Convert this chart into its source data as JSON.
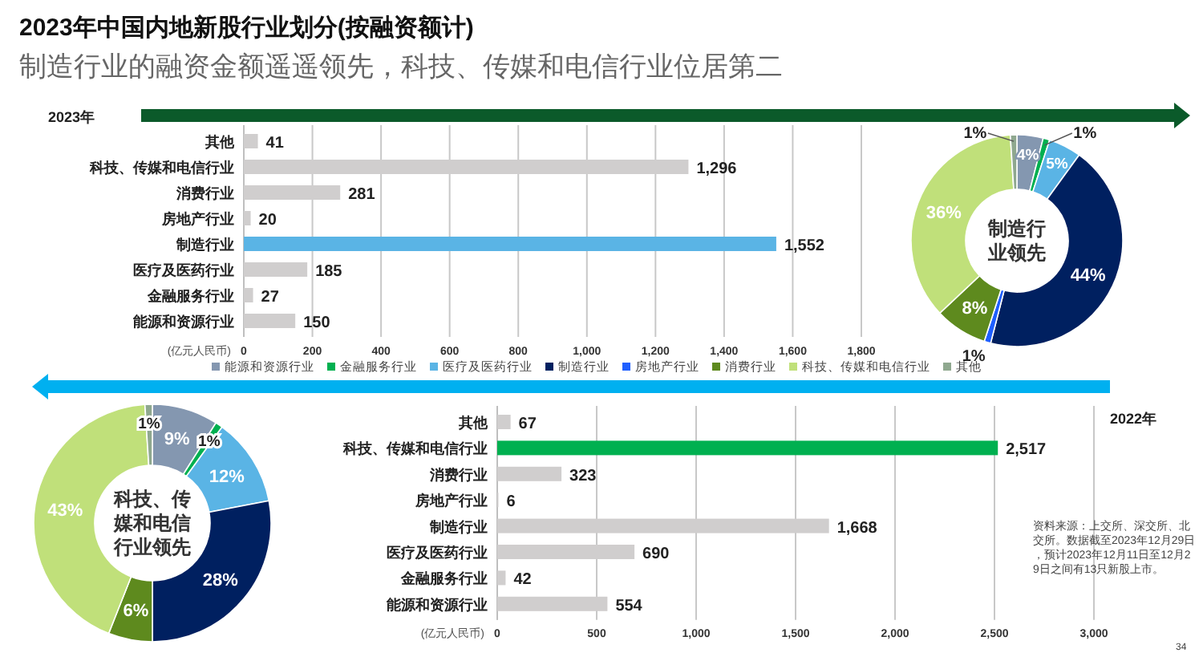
{
  "chart_data": [
    {
      "type": "bar",
      "orientation": "horizontal",
      "title": "2023年中国内地新股行业划分(按融资额计)",
      "subtitle": "制造行业的融资金额遥遥领先，科技、传媒和电信行业位居第二",
      "annotations": [
        "2023年"
      ],
      "xlabel": "(亿元人民币)",
      "categories": [
        "其他",
        "科技、传媒和电信行业",
        "消费行业",
        "房地产行业",
        "制造行业",
        "医疗及医药行业",
        "金融服务行业",
        "能源和资源行业"
      ],
      "values": [
        41,
        1296,
        281,
        20,
        1552,
        185,
        27,
        150
      ],
      "value_labels": [
        "41",
        "1,296",
        "281",
        "20",
        "1,552",
        "185",
        "27",
        "150"
      ],
      "colors": [
        "#d0cece",
        "#d0cece",
        "#d0cece",
        "#d0cece",
        "#5ab4e5",
        "#d0cece",
        "#d0cece",
        "#d0cece"
      ],
      "xlim": [
        0,
        1800
      ],
      "xticks": [
        0,
        200,
        400,
        600,
        800,
        {
          "value": 1000,
          "label": "1,000"
        },
        {
          "value": 1200,
          "label": "1,200"
        },
        {
          "value": 1400,
          "label": "1,400"
        },
        {
          "value": 1600,
          "label": "1,600"
        },
        {
          "value": 1800,
          "label": "1,800"
        }
      ],
      "grid": "x"
    },
    {
      "type": "donut",
      "annotations": [
        "制造行业领先"
      ],
      "legend": "bottom",
      "categories": [
        "能源和资源行业",
        "金融服务行业",
        "医疗及医药行业",
        "制造行业",
        "房地产行业",
        "消费行业",
        "科技、传媒和电信行业",
        "其他"
      ],
      "values": [
        4,
        1,
        5,
        44,
        1,
        8,
        36,
        1
      ],
      "value_labels": [
        "4%",
        "1%",
        "5%",
        "44%",
        "1%",
        "8%",
        "36%",
        "1%"
      ],
      "colors": [
        "#8497b0",
        "#00b050",
        "#5ab4e5",
        "#002060",
        "#1f5fff",
        "#5e8a1e",
        "#c0e07a",
        "#8fa88f"
      ]
    },
    {
      "type": "donut",
      "annotations": [
        "科技、传媒和电信行业领先"
      ],
      "categories": [
        "能源和资源行业",
        "金融服务行业",
        "医疗及医药行业",
        "制造行业",
        "房地产行业",
        "消费行业",
        "科技、传媒和电信行业",
        "其他"
      ],
      "values": [
        9,
        1,
        12,
        28,
        0,
        6,
        43,
        1
      ],
      "value_labels": [
        "9%",
        "1%",
        "12%",
        "28%",
        null,
        "6%",
        "43%",
        "1%"
      ],
      "colors": [
        "#8497b0",
        "#00b050",
        "#5ab4e5",
        "#002060",
        "#1f5fff",
        "#5e8a1e",
        "#c0e07a",
        "#8fa88f"
      ]
    },
    {
      "type": "bar",
      "orientation": "horizontal",
      "title": "2022年",
      "xlabel": "(亿元人民币)",
      "annotations": [
        "资料来源：上交所、深交所、北交所。数据截至2023年12月29日，预计2023年12月11日至12月29日之间有13只新股上市。",
        "34"
      ],
      "categories": [
        "其他",
        "科技、传媒和电信行业",
        "消费行业",
        "房地产行业",
        "制造行业",
        "医疗及医药行业",
        "金融服务行业",
        "能源和资源行业"
      ],
      "values": [
        67,
        2517,
        323,
        6,
        1668,
        690,
        42,
        554
      ],
      "value_labels": [
        "67",
        "2,517",
        "323",
        "6",
        "1,668",
        "690",
        "42",
        "554"
      ],
      "colors": [
        "#d0cece",
        "#00b050",
        "#d0cece",
        "#d0cece",
        "#d0cece",
        "#d0cece",
        "#d0cece",
        "#d0cece"
      ],
      "xlim": [
        0,
        3000
      ],
      "xticks": [
        0,
        500,
        {
          "value": 1000,
          "label": "1,000"
        },
        {
          "value": 1500,
          "label": "1,500"
        },
        {
          "value": 2000,
          "label": "2,000"
        },
        {
          "value": 2500,
          "label": "2,500"
        },
        {
          "value": 3000,
          "label": "3,000"
        }
      ],
      "grid": "x"
    }
  ]
}
